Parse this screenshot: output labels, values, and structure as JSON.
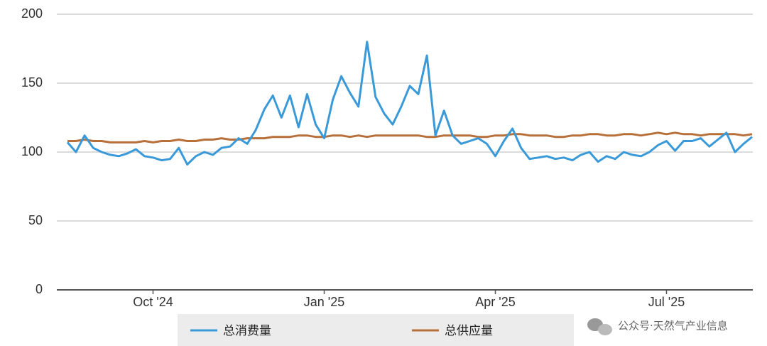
{
  "chart_data": {
    "type": "line",
    "categories": [
      null,
      null,
      null,
      null,
      null,
      null,
      null,
      null,
      null,
      null,
      "Oct '24",
      null,
      null,
      null,
      null,
      null,
      null,
      null,
      null,
      null,
      null,
      null,
      null,
      null,
      null,
      null,
      null,
      null,
      null,
      null,
      "Jan '25",
      null,
      null,
      null,
      null,
      null,
      null,
      null,
      null,
      null,
      null,
      null,
      null,
      null,
      null,
      null,
      null,
      null,
      null,
      null,
      "Apr '25",
      null,
      null,
      null,
      null,
      null,
      null,
      null,
      null,
      null,
      null,
      null,
      null,
      null,
      null,
      null,
      null,
      null,
      null,
      null,
      "Jul '25",
      null,
      null,
      null,
      null,
      null,
      null,
      null,
      null,
      null,
      null
    ],
    "series": [
      {
        "name": "总消费量",
        "color": "#3a9ad9",
        "values": [
          107,
          100,
          112,
          103,
          100,
          98,
          97,
          99,
          102,
          97,
          96,
          94,
          95,
          103,
          91,
          97,
          100,
          98,
          103,
          104,
          110,
          106,
          116,
          131,
          141,
          125,
          141,
          118,
          142,
          120,
          110,
          138,
          155,
          143,
          133,
          180,
          140,
          128,
          120,
          133,
          148,
          142,
          170,
          112,
          130,
          112,
          106,
          108,
          110,
          106,
          97,
          108,
          117,
          103,
          95,
          96,
          97,
          95,
          96,
          94,
          98,
          100,
          93,
          97,
          95,
          100,
          98,
          97,
          100,
          105,
          108,
          101,
          108,
          108,
          110,
          104,
          109,
          114,
          100,
          106,
          111
        ]
      },
      {
        "name": "总供应量",
        "color": "#b8703a",
        "values": [
          108,
          108,
          109,
          108,
          108,
          107,
          107,
          107,
          107,
          108,
          107,
          108,
          108,
          109,
          108,
          108,
          109,
          109,
          110,
          109,
          109,
          110,
          110,
          110,
          111,
          111,
          111,
          112,
          112,
          111,
          111,
          112,
          112,
          111,
          112,
          111,
          112,
          112,
          112,
          112,
          112,
          112,
          111,
          111,
          112,
          112,
          112,
          112,
          111,
          111,
          112,
          112,
          113,
          113,
          112,
          112,
          112,
          111,
          111,
          112,
          112,
          113,
          113,
          112,
          112,
          113,
          113,
          112,
          113,
          114,
          113,
          114,
          113,
          113,
          112,
          113,
          113,
          113,
          113,
          112,
          113
        ]
      }
    ],
    "ylim": [
      0,
      200
    ],
    "yticks": [
      0,
      50,
      100,
      150,
      200
    ],
    "grid": true,
    "watermark": "公众号·天然气产业信息"
  }
}
